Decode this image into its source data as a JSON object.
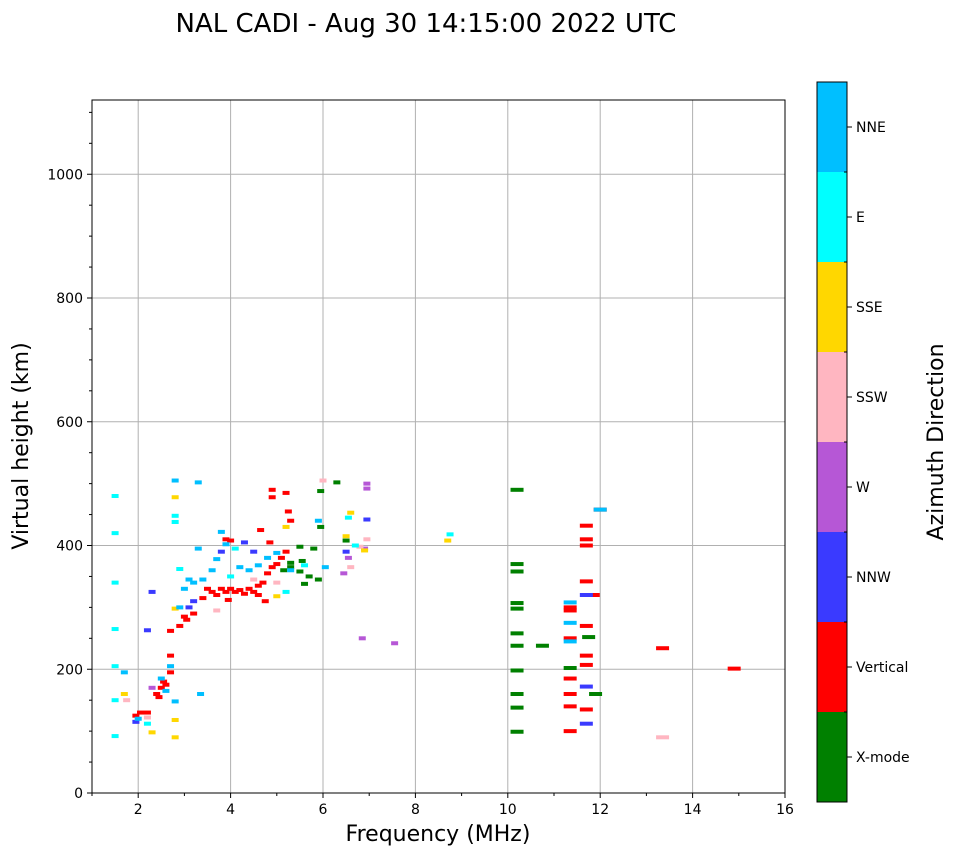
{
  "chart_data": {
    "type": "scatter",
    "title": "NAL CADI - Aug 30 14:15:00 2022 UTC",
    "xlabel": "Frequency (MHz)",
    "ylabel": "Virtual height (km)",
    "xlim": [
      1,
      16
    ],
    "ylim": [
      0,
      1120
    ],
    "x_ticks": [
      2,
      4,
      6,
      8,
      10,
      12,
      14,
      16
    ],
    "y_ticks": [
      0,
      200,
      400,
      600,
      800,
      1000
    ],
    "grid": true,
    "colorbar": {
      "label": "Azimuth Direction",
      "categories": [
        {
          "name": "X-mode",
          "color": "#008000"
        },
        {
          "name": "Vertical",
          "color": "#ff0000"
        },
        {
          "name": "NNW",
          "color": "#3a3aff"
        },
        {
          "name": "W",
          "color": "#b657d6"
        },
        {
          "name": "SSW",
          "color": "#ffb6c1"
        },
        {
          "name": "SSE",
          "color": "#ffd700"
        },
        {
          "name": "E",
          "color": "#00ffff"
        },
        {
          "name": "NNE",
          "color": "#00bfff"
        }
      ]
    },
    "series": [
      {
        "name": "X-mode",
        "points": [
          [
            5.3,
            365
          ],
          [
            5.5,
            358
          ],
          [
            5.55,
            375
          ],
          [
            5.7,
            350
          ],
          [
            5.8,
            395
          ],
          [
            5.9,
            345
          ],
          [
            5.95,
            430
          ],
          [
            5.95,
            488
          ],
          [
            6.3,
            502
          ],
          [
            6.5,
            408
          ],
          [
            5.5,
            398
          ],
          [
            5.6,
            338
          ],
          [
            5.3,
            372
          ],
          [
            5.15,
            360
          ],
          [
            10.2,
            490
          ],
          [
            10.2,
            370
          ],
          [
            10.2,
            358
          ],
          [
            10.2,
            307
          ],
          [
            10.2,
            298
          ],
          [
            10.2,
            258
          ],
          [
            10.2,
            238
          ],
          [
            10.2,
            198
          ],
          [
            10.2,
            160
          ],
          [
            10.2,
            138
          ],
          [
            10.2,
            99
          ],
          [
            10.75,
            238
          ],
          [
            11.75,
            252
          ],
          [
            11.35,
            202
          ],
          [
            11.9,
            160
          ]
        ]
      },
      {
        "name": "Vertical",
        "points": [
          [
            3.0,
            285
          ],
          [
            3.05,
            280
          ],
          [
            3.2,
            290
          ],
          [
            3.4,
            315
          ],
          [
            3.5,
            330
          ],
          [
            3.6,
            325
          ],
          [
            3.7,
            320
          ],
          [
            3.8,
            330
          ],
          [
            3.9,
            325
          ],
          [
            3.95,
            312
          ],
          [
            4.0,
            330
          ],
          [
            4.1,
            325
          ],
          [
            4.2,
            328
          ],
          [
            4.3,
            322
          ],
          [
            4.4,
            330
          ],
          [
            4.5,
            325
          ],
          [
            4.6,
            335
          ],
          [
            4.7,
            340
          ],
          [
            4.75,
            310
          ],
          [
            4.8,
            355
          ],
          [
            4.9,
            365
          ],
          [
            5.0,
            370
          ],
          [
            5.1,
            380
          ],
          [
            5.2,
            390
          ],
          [
            3.9,
            410
          ],
          [
            4.0,
            408
          ],
          [
            4.6,
            320
          ],
          [
            4.85,
            405
          ],
          [
            4.9,
            478
          ],
          [
            4.9,
            490
          ],
          [
            5.2,
            485
          ],
          [
            5.25,
            455
          ],
          [
            5.3,
            440
          ],
          [
            4.65,
            425
          ],
          [
            2.4,
            160
          ],
          [
            2.45,
            155
          ],
          [
            2.5,
            170
          ],
          [
            2.55,
            180
          ],
          [
            2.6,
            175
          ],
          [
            2.7,
            195
          ],
          [
            2.2,
            130
          ],
          [
            2.05,
            130
          ],
          [
            1.95,
            125
          ],
          [
            2.7,
            222
          ],
          [
            2.7,
            262
          ],
          [
            2.9,
            270
          ],
          [
            11.35,
            300
          ],
          [
            11.35,
            250
          ],
          [
            11.35,
            185
          ],
          [
            11.35,
            160
          ],
          [
            11.35,
            140
          ],
          [
            11.35,
            100
          ],
          [
            11.35,
            295
          ],
          [
            11.7,
            432
          ],
          [
            11.7,
            410
          ],
          [
            11.7,
            400
          ],
          [
            11.7,
            342
          ],
          [
            11.7,
            270
          ],
          [
            11.7,
            222
          ],
          [
            11.7,
            207
          ],
          [
            11.7,
            135
          ],
          [
            12.0,
            458
          ],
          [
            13.35,
            234
          ],
          [
            14.9,
            201
          ],
          [
            11.85,
            320
          ]
        ]
      },
      {
        "name": "NNW",
        "points": [
          [
            3.1,
            300
          ],
          [
            3.2,
            310
          ],
          [
            3.8,
            390
          ],
          [
            4.3,
            405
          ],
          [
            4.5,
            390
          ],
          [
            2.3,
            325
          ],
          [
            2.2,
            263
          ],
          [
            1.95,
            115
          ],
          [
            6.5,
            390
          ],
          [
            6.95,
            442
          ],
          [
            11.7,
            320
          ],
          [
            11.7,
            172
          ],
          [
            11.7,
            112
          ]
        ]
      },
      {
        "name": "W",
        "points": [
          [
            2.3,
            170
          ],
          [
            6.55,
            380
          ],
          [
            6.45,
            355
          ],
          [
            6.95,
            492
          ],
          [
            6.95,
            500
          ],
          [
            6.85,
            250
          ],
          [
            7.55,
            242
          ],
          [
            6.9,
            395
          ]
        ]
      },
      {
        "name": "SSW",
        "points": [
          [
            3.7,
            295
          ],
          [
            4.5,
            345
          ],
          [
            5.0,
            340
          ],
          [
            6.6,
            365
          ],
          [
            6.8,
            398
          ],
          [
            6.95,
            410
          ],
          [
            6.0,
            505
          ],
          [
            13.35,
            90
          ],
          [
            1.75,
            150
          ],
          [
            2.2,
            122
          ]
        ]
      },
      {
        "name": "SSE",
        "points": [
          [
            2.8,
            478
          ],
          [
            2.8,
            298
          ],
          [
            2.8,
            118
          ],
          [
            2.8,
            90
          ],
          [
            5.0,
            318
          ],
          [
            5.2,
            430
          ],
          [
            6.6,
            453
          ],
          [
            6.5,
            415
          ],
          [
            6.9,
            392
          ],
          [
            8.7,
            408
          ],
          [
            1.7,
            160
          ],
          [
            2.3,
            98
          ]
        ]
      },
      {
        "name": "E",
        "points": [
          [
            1.5,
            480
          ],
          [
            1.5,
            420
          ],
          [
            1.5,
            340
          ],
          [
            1.5,
            265
          ],
          [
            1.5,
            205
          ],
          [
            1.5,
            150
          ],
          [
            1.5,
            92
          ],
          [
            2.8,
            448
          ],
          [
            2.8,
            438
          ],
          [
            2.9,
            362
          ],
          [
            4.0,
            350
          ],
          [
            4.1,
            395
          ],
          [
            5.2,
            325
          ],
          [
            5.6,
            368
          ],
          [
            6.55,
            445
          ],
          [
            6.7,
            400
          ],
          [
            8.75,
            418
          ],
          [
            2.2,
            112
          ]
        ]
      },
      {
        "name": "NNE",
        "points": [
          [
            2.8,
            505
          ],
          [
            3.3,
            502
          ],
          [
            2.5,
            185
          ],
          [
            2.6,
            165
          ],
          [
            2.7,
            205
          ],
          [
            2.8,
            148
          ],
          [
            2.9,
            300
          ],
          [
            3.0,
            330
          ],
          [
            3.1,
            345
          ],
          [
            3.2,
            340
          ],
          [
            3.3,
            395
          ],
          [
            3.35,
            160
          ],
          [
            3.4,
            345
          ],
          [
            3.6,
            360
          ],
          [
            3.7,
            378
          ],
          [
            3.8,
            422
          ],
          [
            3.9,
            402
          ],
          [
            4.2,
            365
          ],
          [
            4.4,
            360
          ],
          [
            4.6,
            368
          ],
          [
            4.8,
            380
          ],
          [
            5.0,
            388
          ],
          [
            5.3,
            360
          ],
          [
            5.9,
            440
          ],
          [
            6.05,
            365
          ],
          [
            2.0,
            120
          ],
          [
            1.7,
            195
          ],
          [
            11.35,
            308
          ],
          [
            11.35,
            275
          ],
          [
            11.35,
            245
          ],
          [
            12.0,
            458
          ]
        ]
      }
    ]
  }
}
